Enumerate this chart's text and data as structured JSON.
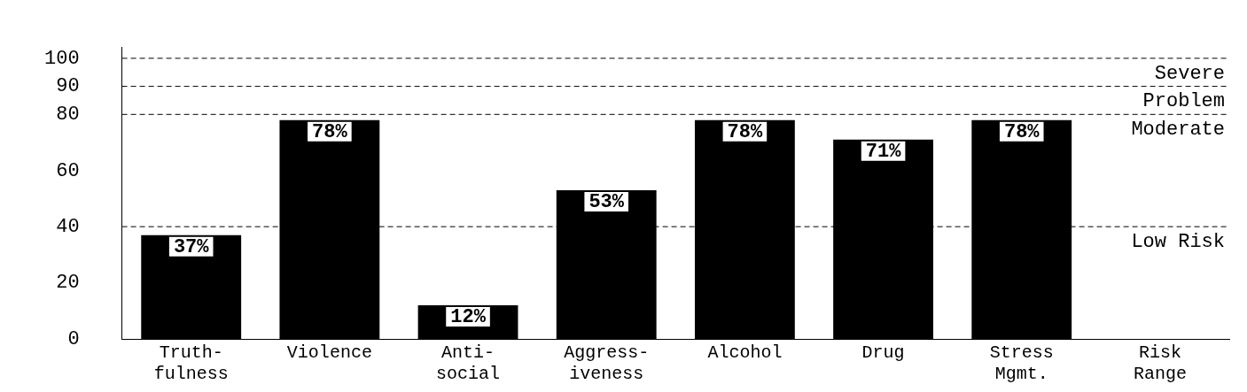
{
  "chart_data": {
    "type": "bar",
    "categories": [
      "Truth-\nfulness",
      "Violence",
      "Anti-\nsocial",
      "Aggress-\niveness",
      "Alcohol",
      "Drug",
      "Stress\nMgmt.",
      "Risk\nRange"
    ],
    "values": [
      37,
      78,
      12,
      53,
      78,
      71,
      78,
      null
    ],
    "value_labels": [
      "37%",
      "78%",
      "12%",
      "53%",
      "78%",
      "71%",
      "78%",
      null
    ],
    "color": "#000000",
    "ylim": [
      0,
      104
    ],
    "yticks": [
      0,
      20,
      40,
      60,
      80,
      90,
      100
    ],
    "ref_lines": [
      {
        "axis": "y",
        "value": 40,
        "label": "Low Risk",
        "line_style": "dashed"
      },
      {
        "axis": "y",
        "value": 80,
        "label": "Moderate",
        "line_style": "dashed"
      },
      {
        "axis": "y",
        "value": 90,
        "label": "Problem",
        "line_style": "dashed"
      },
      {
        "axis": "y",
        "value": 100,
        "label": "Severe",
        "line_style": "dashed"
      }
    ],
    "grid": false,
    "legend": false
  }
}
